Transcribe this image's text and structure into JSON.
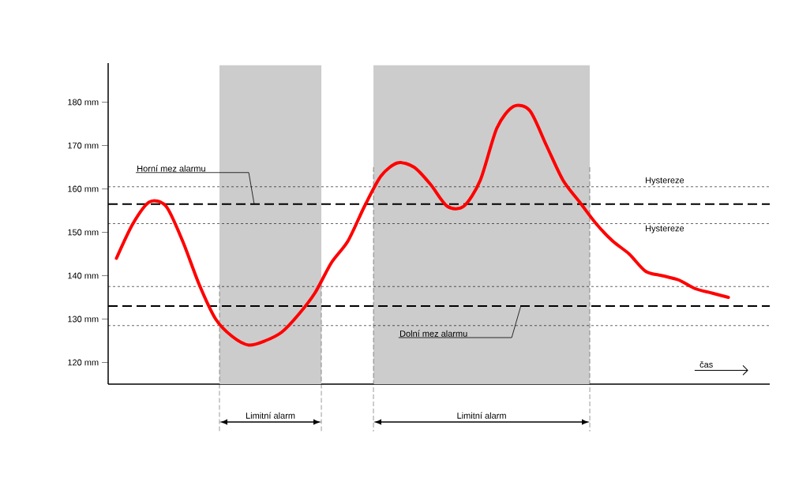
{
  "chart_data": {
    "type": "line",
    "xlabel": "čas",
    "categories": [
      null,
      null,
      null,
      null,
      null,
      null,
      null,
      null,
      null,
      null,
      null,
      null,
      null,
      null,
      null,
      null,
      null,
      null,
      null,
      null,
      null,
      null,
      null,
      null,
      null,
      null,
      null,
      null,
      null,
      null,
      null,
      null,
      null,
      null,
      null,
      null,
      null,
      null,
      null,
      null
    ],
    "series": [
      {
        "color": "#ff0000",
        "values": [
          144,
          152,
          157,
          156,
          148,
          138,
          130,
          126,
          124,
          125,
          127,
          131,
          136,
          143,
          148,
          156,
          163,
          166,
          165,
          161,
          156,
          156,
          162,
          174,
          179,
          178,
          170,
          162,
          157,
          152,
          148,
          145,
          141,
          140,
          139,
          137,
          136,
          135,
          null,
          null
        ]
      }
    ],
    "ylim": [
      115,
      189
    ],
    "yticks": [
      {
        "value": 120,
        "label": "120 mm"
      },
      {
        "value": 130,
        "label": "130 mm"
      },
      {
        "value": 140,
        "label": "140 mm"
      },
      {
        "value": 150,
        "label": "150 mm"
      },
      {
        "value": 160,
        "label": "160 mm"
      },
      {
        "value": 170,
        "label": "170 mm"
      },
      {
        "value": 180,
        "label": "180 mm"
      }
    ],
    "ref_lines": [
      {
        "axis": "y",
        "value": 156.5,
        "label": "Horní mez alarmu",
        "line_style": "dashed",
        "color": "#000000"
      },
      {
        "axis": "y",
        "value": 160.5,
        "label": "Hystereze",
        "line_style": "dotted",
        "color": "#000000"
      },
      {
        "axis": "y",
        "value": 152,
        "label": "Hystereze",
        "line_style": "dotted",
        "color": "#000000"
      },
      {
        "axis": "y",
        "value": 133,
        "label": "Dolní mez alarmu",
        "line_style": "dashed",
        "color": "#000000"
      },
      {
        "axis": "y",
        "value": 137.5,
        "line_style": "dotted",
        "color": "#000000"
      },
      {
        "axis": "y",
        "value": 128.5,
        "line_style": "dotted",
        "color": "#000000"
      }
    ],
    "annotations": [
      "Limitní alarm",
      "Limitní alarm"
    ],
    "grid": false,
    "marker": "none",
    "line_style": "solid"
  }
}
